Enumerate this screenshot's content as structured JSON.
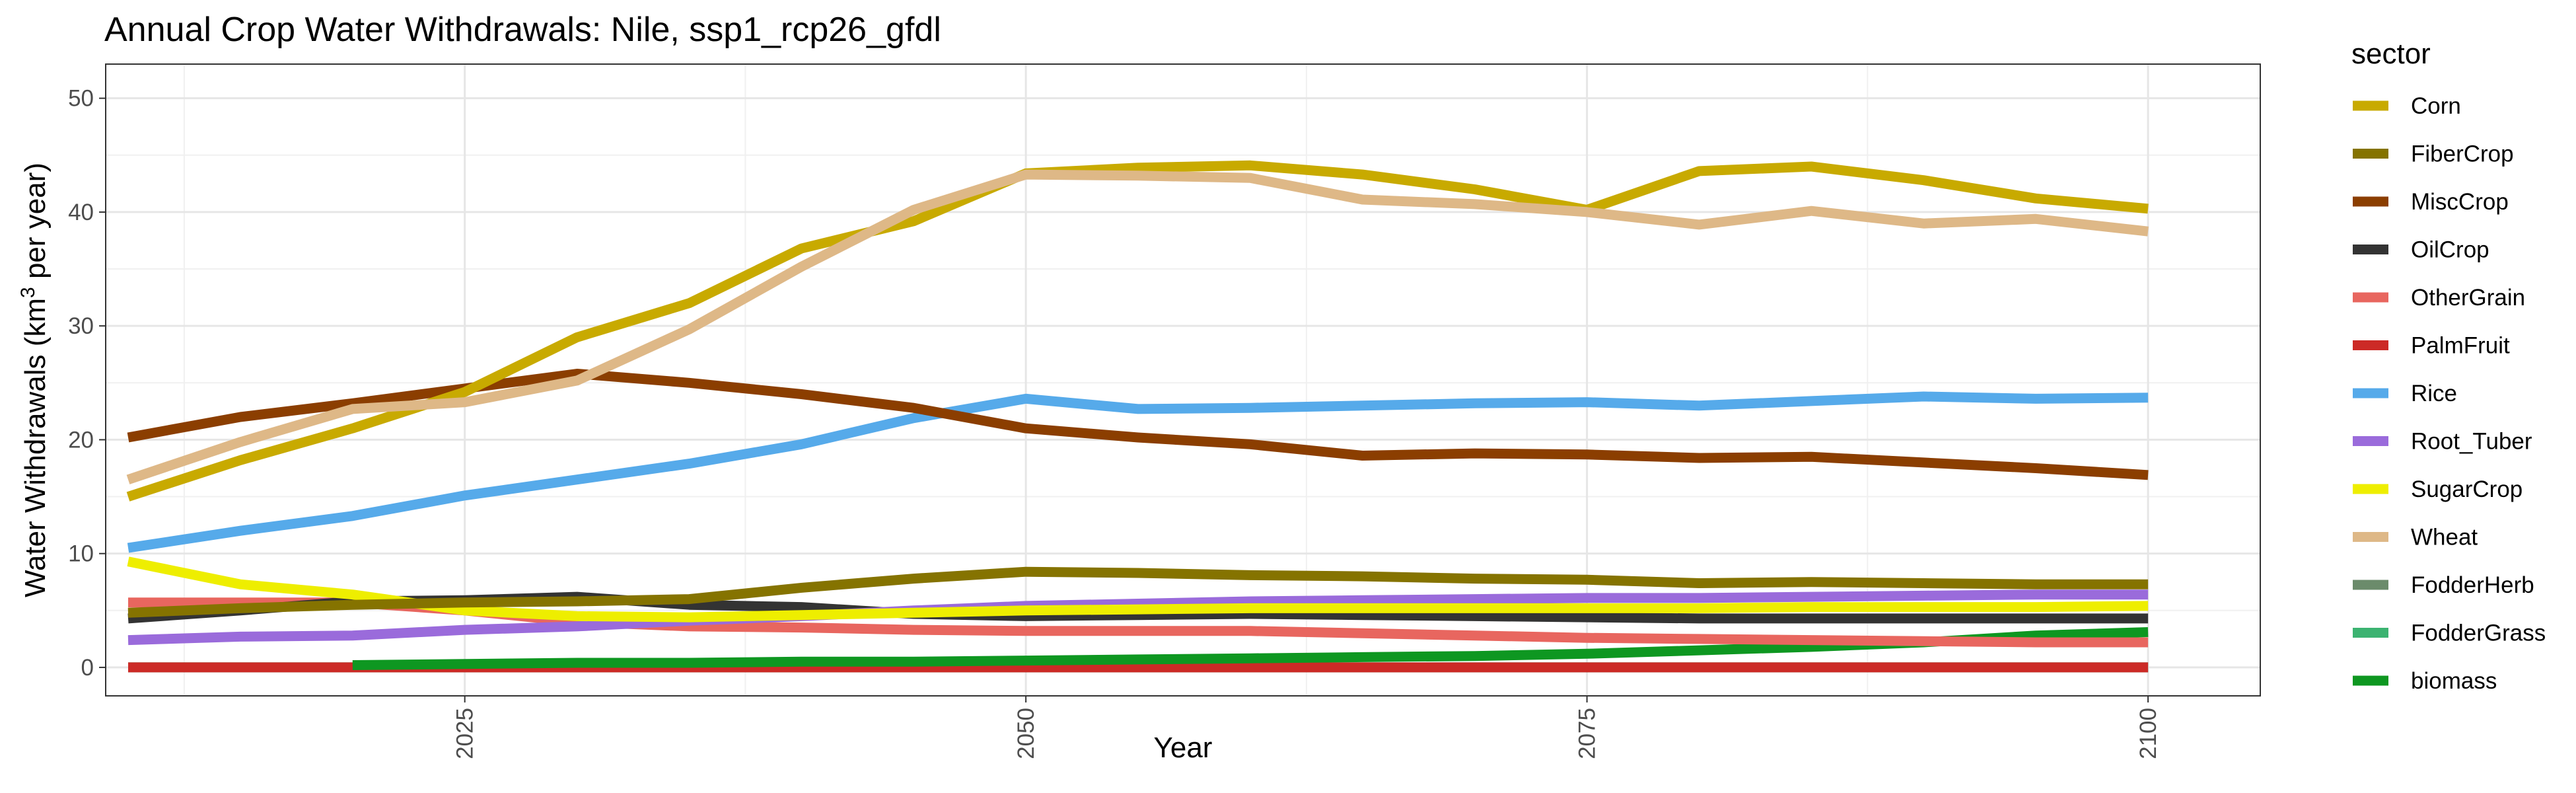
{
  "chart_data": {
    "type": "line",
    "title": "Annual Crop Water Withdrawals: Nile, ssp1_rcp26_gfdl",
    "xlabel": "Year",
    "ylabel_main": "Water Withdrawals (km",
    "ylabel_sup": "3",
    "ylabel_tail": " per year)",
    "xlim": [
      2009,
      2105
    ],
    "ylim": [
      -2.5,
      53
    ],
    "x_ticks": [
      2025,
      2050,
      2075,
      2100
    ],
    "y_ticks": [
      0,
      10,
      20,
      30,
      40,
      50
    ],
    "grid": true,
    "legend_title": "sector",
    "legend_position": "right",
    "x": [
      2010,
      2015,
      2020,
      2025,
      2030,
      2035,
      2040,
      2045,
      2050,
      2055,
      2060,
      2065,
      2070,
      2075,
      2080,
      2085,
      2090,
      2095,
      2100
    ],
    "series": [
      {
        "name": "Corn",
        "color": "#C8AA00",
        "values": [
          15,
          18.2,
          21,
          24.2,
          29,
          32,
          36.8,
          39.2,
          43.4,
          43.9,
          44.1,
          43.3,
          42,
          40.2,
          43.6,
          44,
          42.8,
          41.2,
          40.3
        ]
      },
      {
        "name": "FiberCrop",
        "color": "#857300",
        "values": [
          4.8,
          5.2,
          5.5,
          5.7,
          5.8,
          6,
          7,
          7.8,
          8.4,
          8.3,
          8.1,
          8,
          7.8,
          7.7,
          7.4,
          7.5,
          7.4,
          7.3,
          7.3
        ]
      },
      {
        "name": "MiscCrop",
        "color": "#8B3E00",
        "values": [
          20.2,
          22,
          23.2,
          24.5,
          25.8,
          25,
          24,
          22.8,
          21,
          20.2,
          19.6,
          18.6,
          18.8,
          18.7,
          18.4,
          18.5,
          18,
          17.5,
          16.9
        ]
      },
      {
        "name": "OilCrop",
        "color": "#333333",
        "values": [
          4.3,
          5,
          5.8,
          5.9,
          6.2,
          5.5,
          5.3,
          4.7,
          4.5,
          4.6,
          4.7,
          4.6,
          4.5,
          4.4,
          4.3,
          4.3,
          4.3,
          4.3,
          4.3
        ]
      },
      {
        "name": "OtherGrain",
        "color": "#E8665F",
        "values": [
          5.7,
          5.7,
          5.7,
          5.0,
          4.0,
          3.6,
          3.5,
          3.3,
          3.2,
          3.2,
          3.2,
          3.0,
          2.8,
          2.6,
          2.5,
          2.4,
          2.3,
          2.2,
          2.2
        ]
      },
      {
        "name": "PalmFruit",
        "color": "#CC2A26",
        "values": [
          0,
          0,
          0,
          0,
          0,
          0,
          0,
          0,
          0,
          0,
          0,
          0,
          0,
          0,
          0,
          0,
          0,
          0,
          0
        ]
      },
      {
        "name": "Rice",
        "color": "#56AAEA",
        "values": [
          10.5,
          12,
          13.3,
          15.1,
          16.5,
          17.9,
          19.6,
          21.9,
          23.6,
          22.7,
          22.8,
          23,
          23.2,
          23.3,
          23,
          23.4,
          23.8,
          23.6,
          23.7
        ]
      },
      {
        "name": "Root_Tuber",
        "color": "#9A6BDB",
        "values": [
          2.4,
          2.7,
          2.8,
          3.3,
          3.6,
          4.1,
          4.5,
          5,
          5.4,
          5.6,
          5.8,
          5.9,
          6,
          6.1,
          6.1,
          6.2,
          6.3,
          6.4,
          6.4
        ]
      },
      {
        "name": "SugarCrop",
        "color": "#EEEE00",
        "values": [
          9.3,
          7.3,
          6.4,
          5.0,
          4.5,
          4.4,
          4.6,
          4.8,
          5.0,
          5.1,
          5.2,
          5.2,
          5.2,
          5.2,
          5.2,
          5.3,
          5.3,
          5.3,
          5.4
        ]
      },
      {
        "name": "Wheat",
        "color": "#DEB887",
        "values": [
          16.5,
          19.8,
          22.7,
          23.3,
          25.2,
          29.7,
          35.2,
          40.2,
          43.3,
          43.2,
          43,
          41.1,
          40.7,
          40,
          38.9,
          40.1,
          39,
          39.4,
          38.3
        ]
      },
      {
        "name": "FodderHerb",
        "color": "#6B8B6B",
        "values": [
          0,
          0,
          0,
          0,
          0,
          0,
          0,
          0,
          0,
          0,
          0,
          0,
          0,
          0,
          0,
          0,
          0,
          0,
          0
        ]
      },
      {
        "name": "FodderGrass",
        "color": "#3CB371",
        "values": [
          0,
          0,
          0,
          0,
          0,
          0,
          0,
          0,
          0,
          0,
          0,
          0,
          0,
          0,
          0,
          0,
          0,
          0,
          0
        ]
      },
      {
        "name": "biomass",
        "color": "#0E9721",
        "values": [
          null,
          null,
          0.2,
          0.3,
          0.4,
          0.4,
          0.5,
          0.5,
          0.6,
          0.7,
          0.8,
          0.9,
          1.0,
          1.2,
          1.5,
          1.8,
          2.2,
          2.8,
          3.1
        ]
      }
    ],
    "draw_order": [
      "FodderGrass",
      "FodderHerb",
      "PalmFruit",
      "biomass",
      "OtherGrain",
      "OilCrop",
      "Root_Tuber",
      "SugarCrop",
      "FiberCrop",
      "Rice",
      "MiscCrop",
      "Corn",
      "Wheat"
    ]
  }
}
